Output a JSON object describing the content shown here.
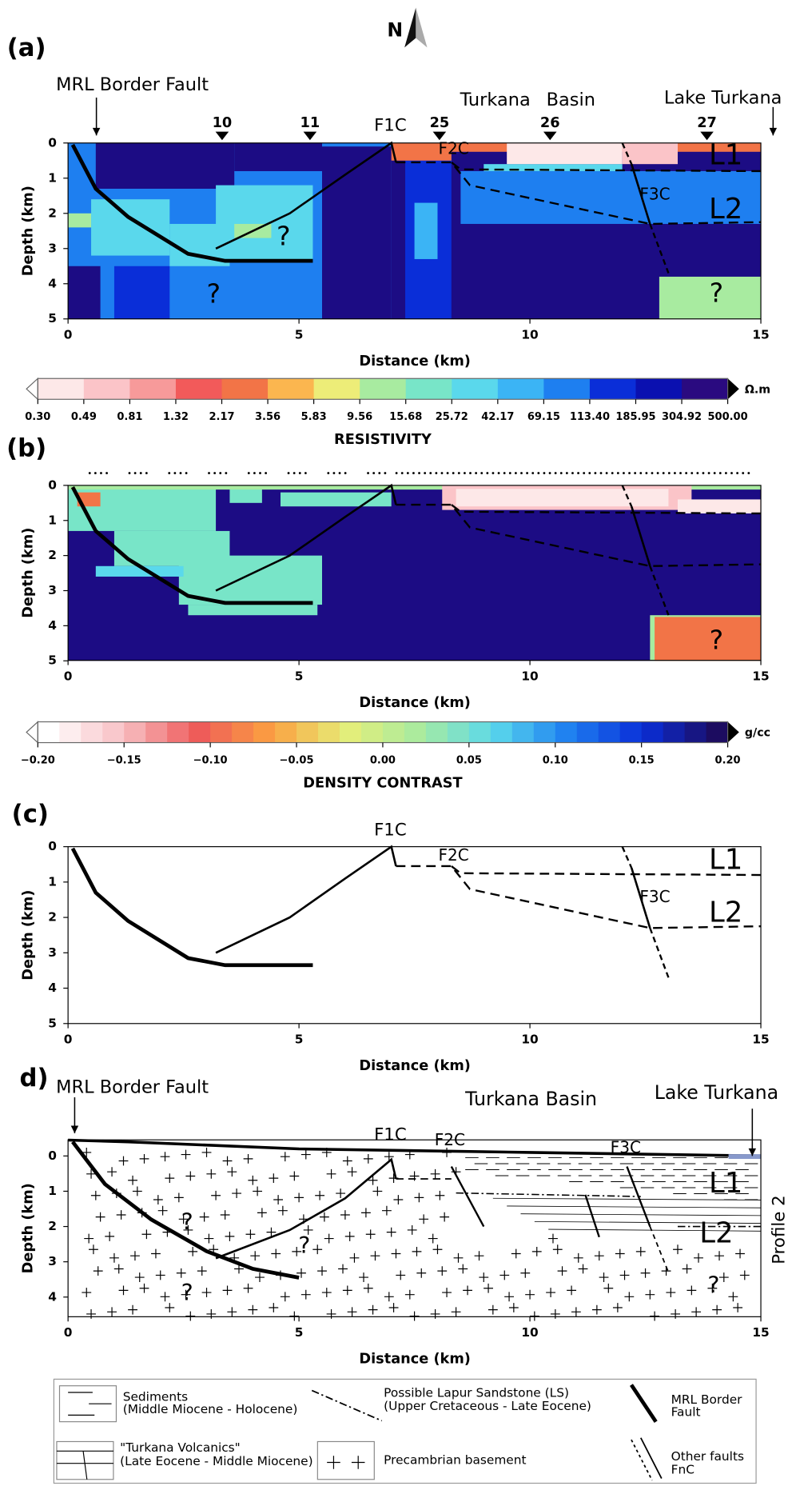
{
  "north": "N",
  "panel_a": {
    "label": "(a)",
    "x_label": "Distance (km)",
    "y_label": "Depth (km)",
    "x_ticks": [
      0,
      5,
      10,
      15
    ],
    "y_ticks": [
      0,
      1,
      2,
      3,
      4,
      5
    ],
    "annotations": [
      "MRL Border Fault",
      "Turkana",
      "Basin",
      "Lake Turkana",
      "10",
      "11",
      "25",
      "26",
      "27",
      "F1C",
      "F2C",
      "F3C",
      "L1",
      "L2",
      "?",
      "?",
      "?"
    ]
  },
  "colorbar_a": {
    "title": "RESISTIVITY",
    "unit": "Ω.m",
    "labels": [
      "0.30",
      "0.49",
      "0.81",
      "1.32",
      "2.17",
      "3.56",
      "5.83",
      "9.56",
      "15.68",
      "25.72",
      "42.17",
      "69.15",
      "113.40",
      "185.95",
      "304.92",
      "500.00"
    ]
  },
  "panel_b": {
    "label": "(b)",
    "x_label": "Distance (km)",
    "y_label": "Depth (km)",
    "x_ticks": [
      0,
      5,
      10,
      15
    ],
    "y_ticks": [
      0,
      1,
      2,
      3,
      4,
      5
    ],
    "annotations": [
      "?"
    ]
  },
  "colorbar_b": {
    "title": "DENSITY CONTRAST",
    "unit": "g/cc",
    "labels": [
      "−0.20",
      "−0.15",
      "−0.10",
      "−0.05",
      "0.00",
      "0.05",
      "0.10",
      "0.15",
      "0.20"
    ]
  },
  "panel_c": {
    "label": "(c)",
    "x_label": "Distance (km)",
    "y_label": "Depth (km)",
    "x_ticks": [
      0,
      5,
      10,
      15
    ],
    "y_ticks": [
      0,
      1,
      2,
      3,
      4,
      5
    ],
    "annotations": [
      "F1C",
      "F2C",
      "F3C",
      "L1",
      "L2"
    ]
  },
  "panel_d": {
    "label": "d)",
    "x_label": "Distance (km)",
    "y_label": "Depth (km)",
    "x_ticks": [
      0,
      5,
      10,
      15
    ],
    "y_ticks": [
      0,
      1,
      2,
      3,
      4
    ],
    "annotations": [
      "MRL Border Fault",
      "Turkana Basin",
      "Lake Turkana",
      "F1C",
      "F2C",
      "F3C",
      "L1",
      "L2",
      "?",
      "?",
      "?",
      "?",
      "Profile 2"
    ]
  },
  "legend": [
    "Sediments",
    "(Middle Miocene - Holocene)",
    "Possible Lapur Sandstone (LS)",
    "(Upper Cretaceous - Late Eocene)",
    "MRL Border",
    "Fault",
    "\"Turkana Volcanics\"",
    "(Late Eocene - Middle Miocene)",
    "Precambrian basement",
    "Other faults",
    "FnC"
  ]
}
